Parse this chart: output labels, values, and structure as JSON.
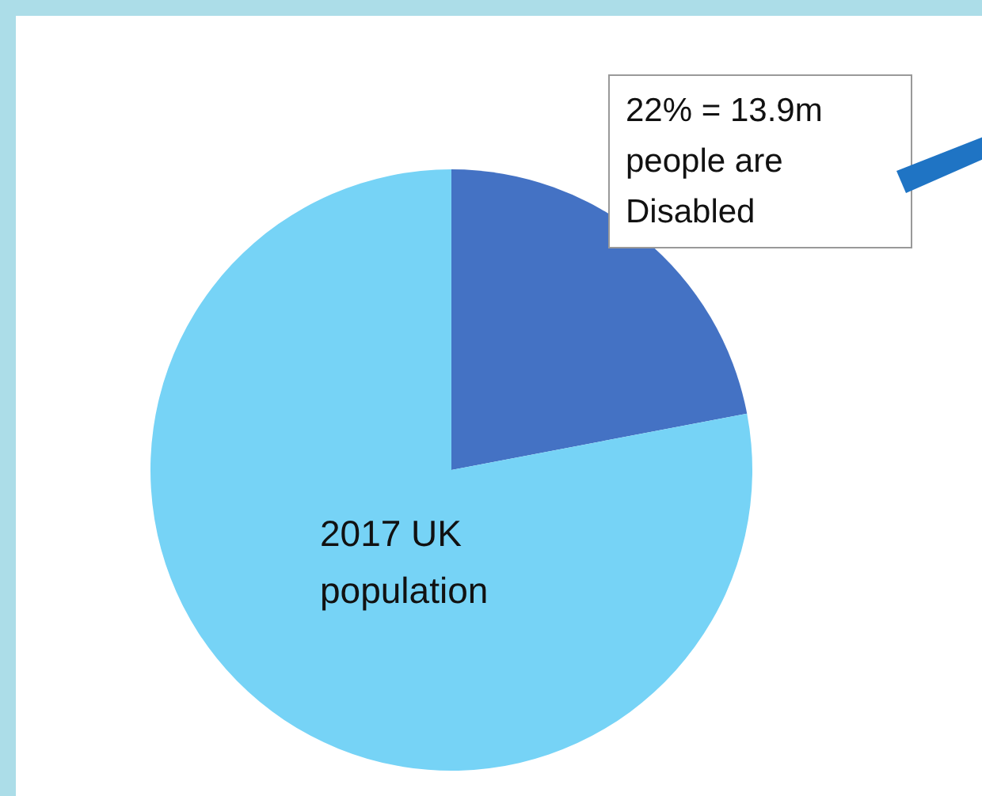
{
  "chart_data": {
    "type": "pie",
    "categories": [
      "22% = 13.9m people are Disabled",
      "2017 UK population"
    ],
    "values": [
      22,
      78
    ],
    "colors": [
      "#4472c4",
      "#76d3f6"
    ],
    "legend": false
  }
}
